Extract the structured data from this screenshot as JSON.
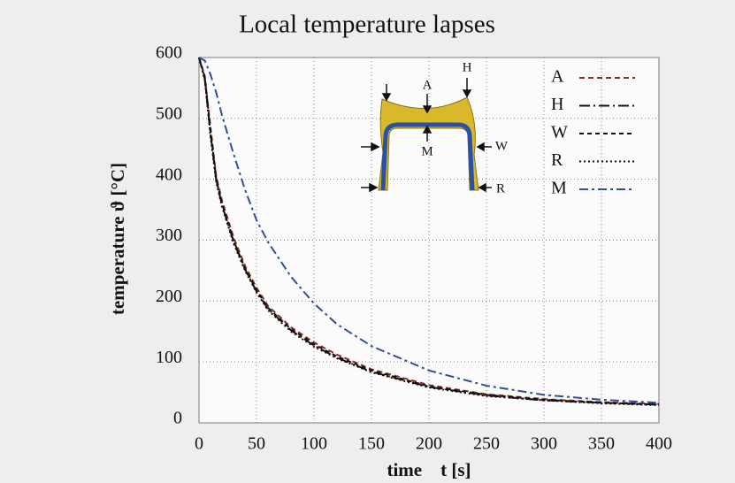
{
  "chart_data": {
    "type": "line",
    "title": "Local temperature lapses",
    "x_label": "time    t [s]",
    "y_label": "temperature  ϑ [°C]",
    "x": [
      0,
      5,
      10,
      15,
      20,
      30,
      40,
      50,
      60,
      80,
      100,
      120,
      150,
      200,
      250,
      300,
      350,
      400
    ],
    "series": [
      {
        "name": "A",
        "color": "#8b2a22",
        "dash": "6,4",
        "values": [
          600,
          570,
          485,
          405,
          365,
          305,
          258,
          222,
          192,
          157,
          132,
          112,
          88,
          62,
          47,
          39,
          34,
          31
        ]
      },
      {
        "name": "H",
        "color": "#111111",
        "dash": "12,4,2,4",
        "values": [
          600,
          565,
          475,
          398,
          358,
          298,
          252,
          216,
          187,
          152,
          127,
          107,
          84,
          59,
          45,
          37,
          33,
          30
        ]
      },
      {
        "name": "W",
        "color": "#111111",
        "dash": "5,4",
        "values": [
          600,
          568,
          480,
          400,
          360,
          300,
          254,
          218,
          189,
          154,
          129,
          109,
          86,
          60,
          46,
          38,
          33,
          30
        ]
      },
      {
        "name": "R",
        "color": "#111111",
        "dash": "2,3",
        "values": [
          600,
          563,
          470,
          395,
          355,
          295,
          250,
          214,
          185,
          150,
          125,
          106,
          83,
          58,
          44,
          37,
          32,
          29
        ]
      },
      {
        "name": "M",
        "color": "#2f4f9a",
        "dash": "10,4,3,4",
        "values": [
          600,
          595,
          572,
          542,
          505,
          442,
          383,
          333,
          297,
          240,
          196,
          162,
          126,
          86,
          61,
          46,
          38,
          33
        ]
      }
    ],
    "diagram_labels": [
      "A",
      "H",
      "W",
      "M",
      "R"
    ],
    "xlim": [
      0,
      400
    ],
    "xticks": [
      0,
      50,
      100,
      150,
      200,
      250,
      300,
      350,
      400
    ],
    "ylim": [
      0,
      600
    ],
    "yticks": [
      0,
      100,
      200,
      300,
      400,
      500,
      600
    ],
    "grid": true
  }
}
